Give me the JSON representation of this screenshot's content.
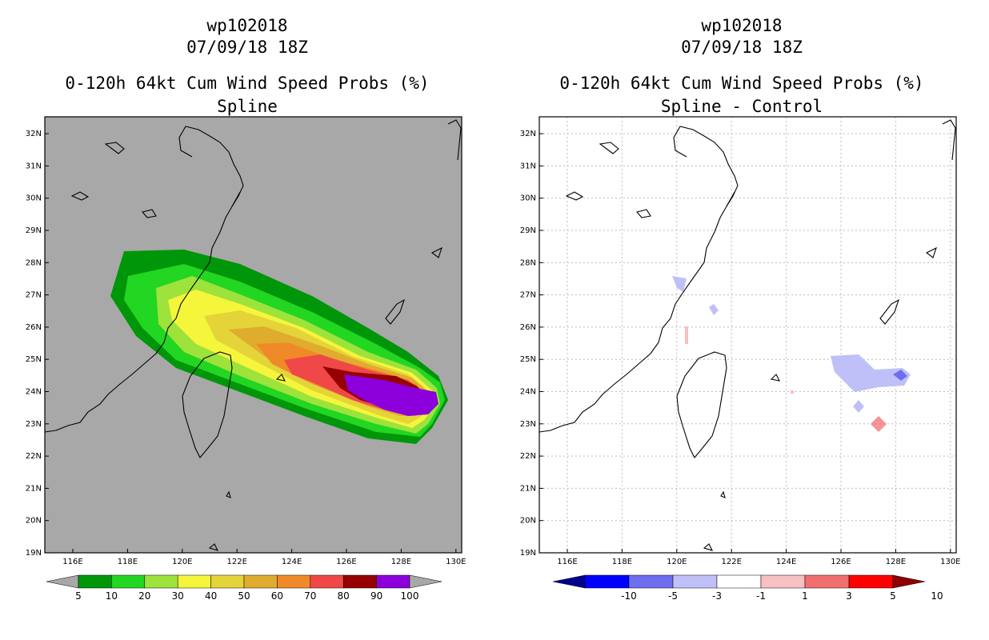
{
  "panels": [
    {
      "id": "spline",
      "storm": "wp102018",
      "datetime": "07/09/18 18Z",
      "product": "0-120h 64kt Cum Wind Speed Probs (%)",
      "subtitle": "Spline",
      "background": "#a8a8a8",
      "colorbar": {
        "labels": [
          "5",
          "10",
          "20",
          "30",
          "40",
          "50",
          "60",
          "70",
          "80",
          "90",
          "100"
        ],
        "colors": [
          "#00960a",
          "#22d622",
          "#9ee23c",
          "#f5f53c",
          "#e4d43a",
          "#e0ac2e",
          "#f08a28",
          "#f04848",
          "#960000",
          "#8c00dc"
        ],
        "under_color": "#a8a8a8",
        "over_color": "#a8a8a8"
      }
    },
    {
      "id": "diff",
      "storm": "wp102018",
      "datetime": "07/09/18 18Z",
      "product": "0-120h 64kt Cum Wind Speed Probs (%)",
      "subtitle": "Spline - Control",
      "background": "#ffffff",
      "colorbar": {
        "labels": [
          "-10",
          "-5",
          "-3",
          "-1",
          "1",
          "3",
          "5",
          "10"
        ],
        "colors": [
          "#0000ff",
          "#6e6ef0",
          "#c0c0f8",
          "#ffffff",
          "#f8c0c0",
          "#f07070",
          "#ff0000"
        ],
        "under_color": "#00008c",
        "over_color": "#8c0000"
      }
    }
  ],
  "map": {
    "lon_ticks": [
      "116E",
      "118E",
      "120E",
      "122E",
      "124E",
      "126E",
      "128E",
      "130E"
    ],
    "lat_ticks": [
      "19N",
      "20N",
      "21N",
      "22N",
      "23N",
      "24N",
      "25N",
      "26N",
      "27N",
      "28N",
      "29N",
      "30N",
      "31N",
      "32N"
    ]
  }
}
